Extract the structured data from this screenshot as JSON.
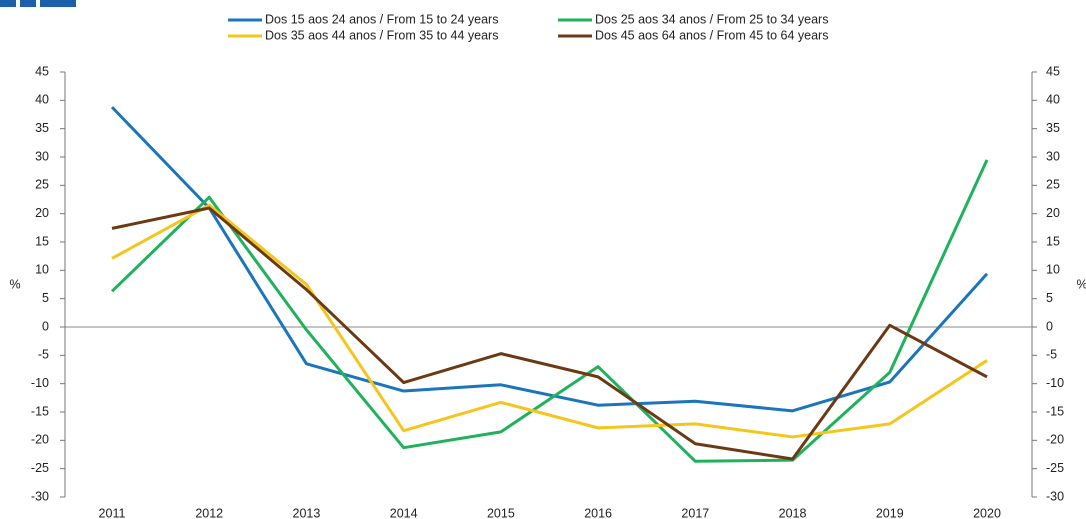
{
  "chart_data": {
    "type": "line",
    "y_label": "%",
    "y2_label": "%",
    "categories": [
      "2011",
      "2012",
      "2013",
      "2014",
      "2015",
      "2016",
      "2017",
      "2018",
      "2019",
      "2020"
    ],
    "series": [
      {
        "name": "Dos 15 aos 24 anos / From 15 to 24 years",
        "color": "#1b75bc",
        "values": [
          38.8,
          21,
          -6.5,
          -11.3,
          -10.2,
          -13.8,
          -13.1,
          -14.8,
          -9.7,
          9.4
        ]
      },
      {
        "name": "Dos 25 aos 34 anos / From 25 to 34 years",
        "color": "#1fb25a",
        "values": [
          6.3,
          22.9,
          -0.5,
          -21.3,
          -18.5,
          -7,
          -23.7,
          -23.5,
          -8,
          29.5
        ]
      },
      {
        "name": "Dos 35 aos 44 anos / From 35 to 44 years",
        "color": "#f4c51c",
        "values": [
          12.1,
          21.5,
          7.5,
          -18.3,
          -13.3,
          -17.8,
          -17.1,
          -19.4,
          -17.1,
          -5.9
        ]
      },
      {
        "name": "Dos 45 aos 64 anos / From 45 to 64 years",
        "color": "#6b3a14",
        "values": [
          17.4,
          21,
          6.6,
          -9.8,
          -4.7,
          -8.8,
          -20.6,
          -23.3,
          0.3,
          -8.8
        ]
      }
    ],
    "ylim": [
      -30,
      45
    ],
    "yticks": [
      -30,
      -25,
      -20,
      -15,
      -10,
      -5,
      0,
      5,
      10,
      15,
      20,
      25,
      30,
      35,
      40,
      45
    ],
    "y2lim": [
      -30,
      45
    ],
    "y2ticks": [
      -30,
      -25,
      -20,
      -15,
      -10,
      -5,
      0,
      5,
      10,
      15,
      20,
      25,
      30,
      35,
      40,
      45
    ]
  }
}
